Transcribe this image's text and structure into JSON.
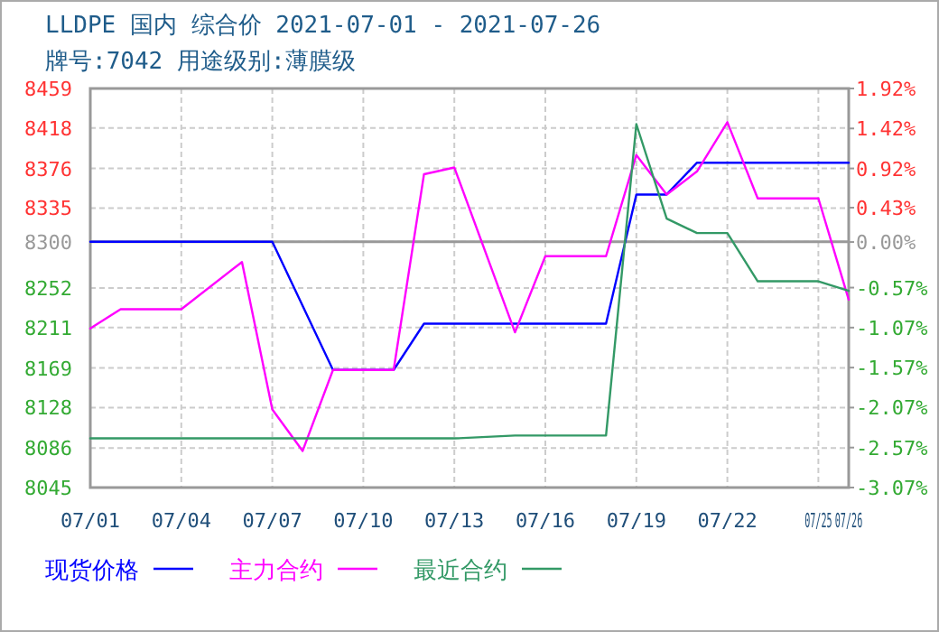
{
  "chart_data": {
    "type": "line",
    "title": "LLDPE 国内 综合价 2021-07-01 - 2021-07-26",
    "subtitle": "牌号:7042 用途级别:薄膜级",
    "series": [
      {
        "name": "现货价格",
        "color": "#0000ff",
        "x": [
          "--07-01",
          "--07-07",
          "--07-09",
          "--07-11",
          "--07-12",
          "--07-18",
          "--07-19",
          "--07-20",
          "--07-21",
          "--07-26"
        ],
        "values": [
          8300,
          8300,
          8167,
          8167,
          8215,
          8215,
          8349,
          8349,
          8382,
          8382
        ]
      },
      {
        "name": "主力合约",
        "color": "#ff00ff",
        "x": [
          "--07-01",
          "--07-02",
          "--07-04",
          "--07-06",
          "--07-07",
          "--07-08",
          "--07-09",
          "--07-11",
          "--07-12",
          "--07-13",
          "--07-15",
          "--07-16",
          "--07-18",
          "--07-19",
          "--07-20",
          "--07-21",
          "--07-22",
          "--07-23",
          "--07-25",
          "--07-26"
        ],
        "values": [
          8210,
          8230,
          8230,
          8279,
          8126,
          8083,
          8167,
          8167,
          8370,
          8377,
          8206,
          8285,
          8285,
          8390,
          8349,
          8373,
          8424,
          8345,
          8345,
          8240
        ]
      },
      {
        "name": "最近合约",
        "color": "#339966",
        "x": [
          "--07-01",
          "--07-13",
          "--07-15",
          "--07-18",
          "--07-19",
          "--07-20",
          "--07-21",
          "--07-22",
          "--07-23",
          "--07-25",
          "--07-26"
        ],
        "values": [
          8096,
          8096,
          8099,
          8099,
          8422,
          8324,
          8309,
          8309,
          8259,
          8259,
          8249
        ]
      }
    ],
    "xlim": [
      "--07-01",
      "--07-26"
    ],
    "xticks": [
      {
        "value": "--07-01",
        "label": "07/01"
      },
      {
        "value": "--07-04",
        "label": "07/04"
      },
      {
        "value": "--07-07",
        "label": "07/07"
      },
      {
        "value": "--07-10",
        "label": "07/10"
      },
      {
        "value": "--07-13",
        "label": "07/13"
      },
      {
        "value": "--07-16",
        "label": "07/16"
      },
      {
        "value": "--07-19",
        "label": "07/19"
      },
      {
        "value": "--07-22",
        "label": "07/22"
      },
      {
        "value": "--07-25",
        "label": "07/25"
      },
      {
        "value": "--07-26",
        "label": "07/26"
      }
    ],
    "ylim": [
      8045,
      8459
    ],
    "yticks": [
      8459,
      8418,
      8376,
      8335,
      8300,
      8252,
      8211,
      8169,
      8128,
      8086,
      8045
    ],
    "y2lim": [
      -3.07,
      1.92
    ],
    "y2ticks": [
      {
        "value": 1.92,
        "label": "1.92%"
      },
      {
        "value": 1.42,
        "label": "1.42%"
      },
      {
        "value": 0.92,
        "label": "0.92%"
      },
      {
        "value": 0.43,
        "label": "0.43%"
      },
      {
        "value": 0.0,
        "label": "0.00%"
      },
      {
        "value": -0.57,
        "label": "-0.57%"
      },
      {
        "value": -1.07,
        "label": "-1.07%"
      },
      {
        "value": -1.57,
        "label": "-1.57%"
      },
      {
        "value": -2.07,
        "label": "-2.07%"
      },
      {
        "value": -2.57,
        "label": "-2.57%"
      },
      {
        "value": -3.07,
        "label": "-3.07%"
      }
    ],
    "ref_lines": [
      {
        "axis": "y",
        "value": 8300,
        "color": "#999999"
      }
    ],
    "grid": true,
    "legend": "bottom",
    "marker": "none",
    "line_style": "solid"
  }
}
